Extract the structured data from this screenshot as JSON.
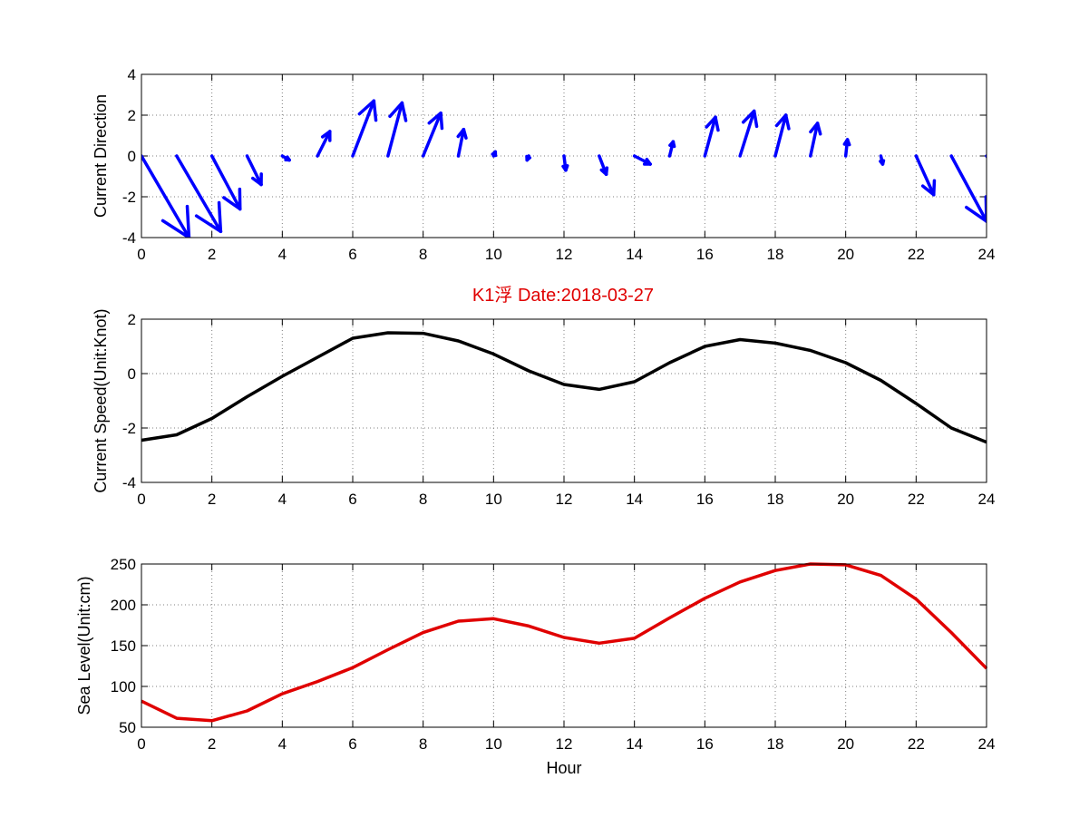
{
  "title": "K1浮 Date:2018-03-27",
  "colors": {
    "direction": "#0000FF",
    "speed": "#000000",
    "sea_level": "#E00000",
    "title": "#E00000",
    "grid": "#808080"
  },
  "chart_data": [
    {
      "type": "quiver",
      "ylabel": "Current Direction",
      "xlabel": "",
      "xlim": [
        0,
        24
      ],
      "ylim": [
        -4,
        4
      ],
      "xticks": [
        "0",
        "2",
        "4",
        "6",
        "8",
        "10",
        "12",
        "14",
        "16",
        "18",
        "20",
        "22",
        "24"
      ],
      "yticks": [
        "-4",
        "-2",
        "0",
        "2",
        "4"
      ],
      "grid": true,
      "x": [
        0,
        1,
        2,
        3,
        4,
        5,
        6,
        7,
        8,
        9,
        10,
        11,
        12,
        13,
        14,
        15,
        16,
        17,
        18,
        19,
        20,
        21,
        22,
        23,
        24
      ],
      "u": [
        1.35,
        1.25,
        0.8,
        0.4,
        0.2,
        0.35,
        0.6,
        0.4,
        0.5,
        0.15,
        0.05,
        -0.05,
        0.05,
        0.2,
        0.45,
        0.1,
        0.3,
        0.4,
        0.3,
        0.2,
        0.05,
        0.05,
        0.5,
        1.0,
        1.4
      ],
      "v": [
        -4.0,
        -3.7,
        -2.6,
        -1.4,
        -0.2,
        1.2,
        2.7,
        2.6,
        2.1,
        1.3,
        0.2,
        -0.2,
        -0.7,
        -0.9,
        -0.4,
        0.7,
        1.9,
        2.2,
        2.0,
        1.6,
        0.8,
        -0.4,
        -1.9,
        -3.2,
        -4.0
      ]
    },
    {
      "type": "line",
      "ylabel": "Current Speed(Unit:Knot)",
      "xlabel": "",
      "xlim": [
        0,
        24
      ],
      "ylim": [
        -4,
        2
      ],
      "xticks": [
        "0",
        "2",
        "4",
        "6",
        "8",
        "10",
        "12",
        "14",
        "16",
        "18",
        "20",
        "22",
        "24"
      ],
      "yticks": [
        "-4",
        "-2",
        "0",
        "2"
      ],
      "grid": true,
      "x": [
        0,
        1,
        2,
        3,
        4,
        5,
        6,
        7,
        8,
        9,
        10,
        11,
        12,
        13,
        14,
        15,
        16,
        17,
        18,
        19,
        20,
        21,
        22,
        23,
        24
      ],
      "series": [
        {
          "values": [
            -2.45,
            -2.25,
            -1.65,
            -0.85,
            -0.1,
            0.6,
            1.3,
            1.5,
            1.48,
            1.2,
            0.72,
            0.1,
            -0.4,
            -0.58,
            -0.3,
            0.4,
            1.0,
            1.25,
            1.12,
            0.85,
            0.4,
            -0.25,
            -1.1,
            -2.0,
            -2.52
          ]
        }
      ]
    },
    {
      "type": "line",
      "ylabel": "Sea Level(Unit:cm)",
      "xlabel": "Hour",
      "xlim": [
        0,
        24
      ],
      "ylim": [
        50,
        250
      ],
      "xticks": [
        "0",
        "2",
        "4",
        "6",
        "8",
        "10",
        "12",
        "14",
        "16",
        "18",
        "20",
        "22",
        "24"
      ],
      "yticks": [
        "50",
        "100",
        "150",
        "200",
        "250"
      ],
      "grid": true,
      "x": [
        0,
        1,
        2,
        3,
        4,
        5,
        6,
        7,
        8,
        9,
        10,
        11,
        12,
        13,
        14,
        15,
        16,
        17,
        18,
        19,
        20,
        21,
        22,
        23,
        24
      ],
      "series": [
        {
          "values": [
            82,
            61,
            58,
            70,
            91,
            106,
            123,
            145,
            166,
            180,
            183,
            174,
            160,
            153,
            159,
            184,
            208,
            228,
            242,
            250,
            249,
            236,
            207,
            166,
            122
          ]
        }
      ]
    }
  ]
}
